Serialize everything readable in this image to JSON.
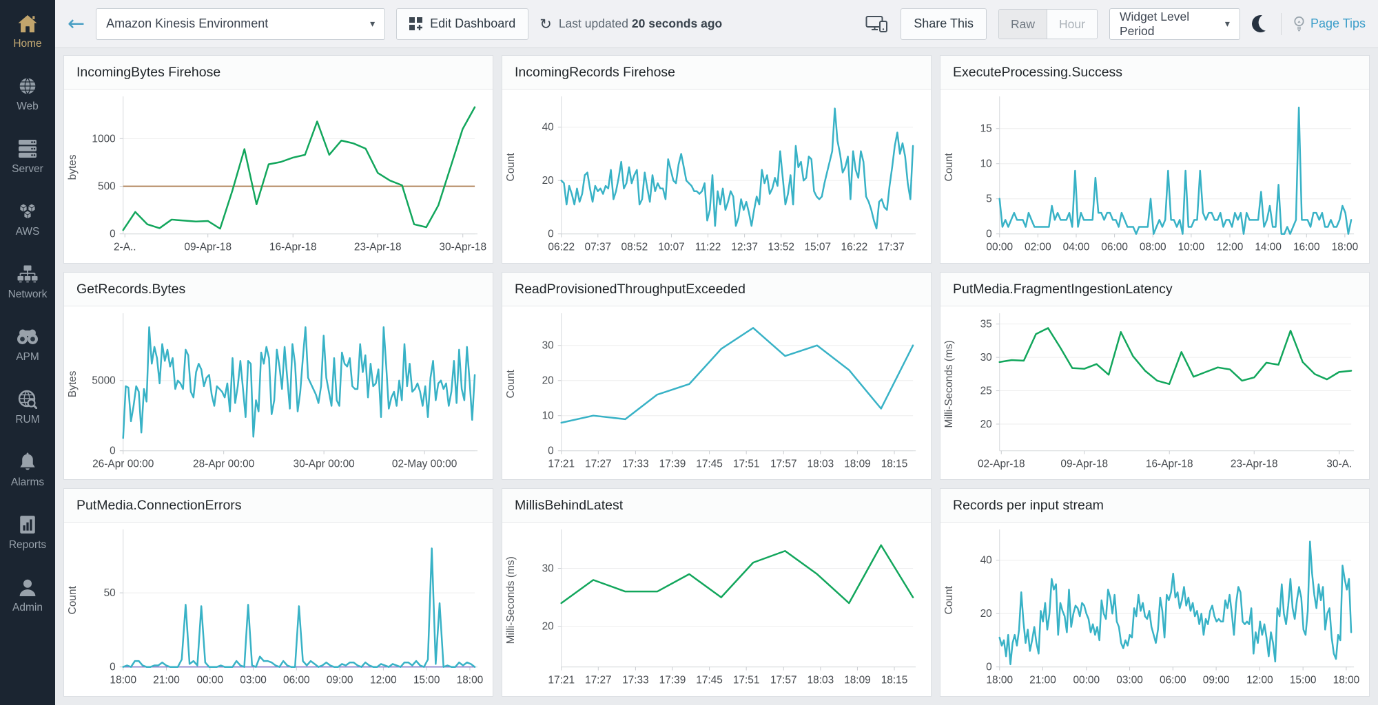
{
  "sidebar": {
    "items": [
      {
        "label": "Home",
        "icon": "home-icon",
        "active": true
      },
      {
        "label": "Web",
        "icon": "web-icon",
        "active": false
      },
      {
        "label": "Server",
        "icon": "server-icon",
        "active": false
      },
      {
        "label": "AWS",
        "icon": "aws-icon",
        "active": false
      },
      {
        "label": "Network",
        "icon": "network-icon",
        "active": false
      },
      {
        "label": "APM",
        "icon": "apm-icon",
        "active": false
      },
      {
        "label": "RUM",
        "icon": "rum-icon",
        "active": false
      },
      {
        "label": "Alarms",
        "icon": "alarms-icon",
        "active": false
      },
      {
        "label": "Reports",
        "icon": "reports-icon",
        "active": false
      },
      {
        "label": "Admin",
        "icon": "admin-icon",
        "active": false
      }
    ]
  },
  "topbar": {
    "icons": {
      "back": "←",
      "caret": "▾",
      "refresh": "↻"
    },
    "dashboard_select_value": "Amazon Kinesis Environment",
    "edit_dashboard_label": "Edit Dashboard",
    "last_updated_prefix": "Last updated",
    "last_updated_value": "20 seconds ago",
    "share_this_label": "Share This",
    "raw_label": "Raw",
    "hour_label": "Hour",
    "widget_level_period_label": "Widget Level Period",
    "page_tips_label": "Page Tips"
  },
  "colors": {
    "green": "#12a65c",
    "teal": "#38b2c6",
    "threshold_tan": "#aa7a4e",
    "baseline_purple": "#8a7fc9"
  },
  "chart_data": [
    {
      "type": "line",
      "title": "IncomingBytes Firehose",
      "ylabel": "bytes",
      "yticks": [
        0,
        500,
        1000
      ],
      "ylim": [
        0,
        1400
      ],
      "xlabels": [
        "2-A..",
        "09-Apr-18",
        "16-Apr-18",
        "23-Apr-18",
        "30-Apr-18"
      ],
      "xpos": [
        0.005,
        0.241,
        0.483,
        0.724,
        0.966
      ],
      "color": "#12a65c",
      "threshold": {
        "value": 500,
        "color": "#aa7a4e"
      },
      "values": [
        40,
        230,
        100,
        60,
        150,
        140,
        130,
        135,
        55,
        450,
        890,
        310,
        730,
        755,
        800,
        830,
        1180,
        830,
        980,
        950,
        895,
        640,
        560,
        510,
        100,
        70,
        300,
        700,
        1100,
        1330
      ]
    },
    {
      "type": "line",
      "title": "IncomingRecords Firehose",
      "ylabel": "Count",
      "yticks": [
        0,
        20,
        40
      ],
      "ylim": [
        0,
        50
      ],
      "xlabels": [
        "06:22",
        "07:37",
        "08:52",
        "10:07",
        "11:22",
        "12:37",
        "13:52",
        "15:07",
        "16:22",
        "17:37"
      ],
      "xpos": [
        0,
        0.104,
        0.208,
        0.313,
        0.417,
        0.521,
        0.625,
        0.729,
        0.833,
        0.938
      ],
      "color": "#38b2c6",
      "values": [
        20,
        19,
        11,
        18,
        15,
        11,
        17,
        12,
        15,
        22,
        23,
        17,
        12,
        18,
        16,
        17,
        15,
        18,
        17,
        24,
        13,
        16,
        21,
        27,
        17,
        19,
        25,
        19,
        22,
        24,
        11,
        13,
        23,
        17,
        12,
        22,
        16,
        19,
        17,
        17,
        13,
        28,
        24,
        20,
        19,
        26,
        30,
        25,
        20,
        19,
        18,
        16,
        16,
        15,
        16,
        19,
        5,
        9,
        22,
        3,
        16,
        11,
        17,
        9,
        12,
        16,
        14,
        3,
        6,
        13,
        9,
        12,
        8,
        3,
        9,
        14,
        11,
        24,
        19,
        22,
        15,
        17,
        21,
        18,
        31,
        21,
        11,
        15,
        22,
        11,
        33,
        25,
        27,
        20,
        21,
        29,
        28,
        16,
        14,
        13,
        14,
        19,
        23,
        27,
        31,
        47,
        35,
        30,
        23,
        25,
        29,
        13,
        31,
        24,
        21,
        31,
        27,
        14,
        12,
        9,
        5,
        2,
        12,
        13,
        10,
        9,
        18,
        25,
        33,
        38,
        30,
        34,
        29,
        19,
        13,
        33
      ]
    },
    {
      "type": "line",
      "title": "ExecuteProcessing.Success",
      "ylabel": "Count",
      "yticks": [
        0,
        5,
        10,
        15
      ],
      "ylim": [
        0,
        19
      ],
      "xlabels": [
        "00:00",
        "02:00",
        "04:00",
        "06:00",
        "08:00",
        "10:00",
        "12:00",
        "14:00",
        "16:00",
        "18:00"
      ],
      "xpos": [
        0,
        0.109,
        0.218,
        0.327,
        0.436,
        0.545,
        0.655,
        0.764,
        0.873,
        0.982
      ],
      "color": "#38b2c6",
      "values": [
        5,
        1,
        2,
        1,
        2,
        3,
        2,
        2,
        2,
        1,
        3,
        2,
        1,
        1,
        1,
        1,
        1,
        1,
        4,
        2,
        3,
        2,
        2,
        2,
        3,
        1,
        9,
        1,
        3,
        2,
        2,
        2,
        2,
        8,
        3,
        3,
        2,
        3,
        3,
        2,
        2,
        1,
        3,
        2,
        1,
        1,
        1,
        0,
        1,
        1,
        1,
        1,
        5,
        0,
        1,
        2,
        1,
        2,
        9,
        2,
        2,
        1,
        2,
        0,
        9,
        1,
        1,
        2,
        2,
        9,
        3,
        2,
        3,
        3,
        2,
        2,
        3,
        1,
        2,
        2,
        1,
        3,
        2,
        3,
        0,
        3,
        2,
        2,
        2,
        2,
        6,
        1,
        2,
        4,
        1,
        1,
        7,
        0,
        0,
        1,
        0,
        1,
        2,
        18,
        2,
        2,
        2,
        1,
        3,
        3,
        2,
        3,
        1,
        1,
        2,
        1,
        1,
        2,
        4,
        3,
        0,
        2
      ]
    },
    {
      "type": "line",
      "title": "GetRecords.Bytes",
      "ylabel": "Bytes",
      "yticks": [
        0,
        5000
      ],
      "ylim": [
        0,
        9500
      ],
      "xlabels": [
        "26-Apr 00:00",
        "28-Apr 00:00",
        "30-Apr 00:00",
        "02-May 00:00"
      ],
      "xpos": [
        0,
        0.286,
        0.571,
        0.857
      ],
      "color": "#38b2c6",
      "values": [
        900,
        4600,
        4500,
        2100,
        3200,
        4600,
        4200,
        1300,
        4400,
        3500,
        8800,
        6200,
        7400,
        6600,
        4800,
        7600,
        6400,
        7200,
        6000,
        6600,
        4400,
        5000,
        4800,
        4400,
        7200,
        6800,
        4200,
        3800,
        5600,
        6200,
        5800,
        4600,
        5200,
        5400,
        4000,
        3200,
        4600,
        4400,
        4200,
        3800,
        4800,
        2800,
        6600,
        3400,
        4600,
        6400,
        4400,
        2400,
        6400,
        6200,
        1000,
        3600,
        2800,
        7000,
        6200,
        7400,
        6600,
        2600,
        3600,
        7200,
        6000,
        4400,
        7400,
        5200,
        3000,
        7600,
        6200,
        2800,
        4200,
        6600,
        8800,
        5200,
        4800,
        4400,
        4000,
        3400,
        4600,
        8200,
        5200,
        4200,
        3200,
        6600,
        3600,
        3200,
        7000,
        6200,
        6000,
        6600,
        4600,
        4400,
        4400,
        7600,
        5600,
        6800,
        3800,
        6200,
        4600,
        4800,
        5800,
        2400,
        8800,
        6000,
        3000,
        3800,
        4200,
        3200,
        5000,
        3600,
        7600,
        4600,
        6200,
        4200,
        4400,
        4800,
        4200,
        3200,
        4600,
        2400,
        5200,
        6400,
        3600,
        4800,
        5000,
        4400,
        4800,
        3200,
        4200,
        6400,
        3400,
        7200,
        4400,
        3600,
        7400,
        5000,
        2200,
        5400
      ]
    },
    {
      "type": "line",
      "title": "ReadProvisionedThroughputExceeded",
      "ylabel": "Count",
      "yticks": [
        0,
        10,
        20,
        30
      ],
      "ylim": [
        0,
        38
      ],
      "xlabels": [
        "17:21",
        "17:27",
        "17:33",
        "17:39",
        "17:45",
        "17:51",
        "17:57",
        "18:03",
        "18:09",
        "18:15"
      ],
      "xpos": [
        0,
        0.105,
        0.211,
        0.316,
        0.421,
        0.526,
        0.632,
        0.737,
        0.842,
        0.947
      ],
      "color": "#38b2c6",
      "values": [
        8,
        10,
        9,
        16,
        19,
        29,
        35,
        27,
        30,
        23,
        12,
        30
      ]
    },
    {
      "type": "line",
      "title": "PutMedia.FragmentIngestionLatency",
      "ylabel": "Milli-Seconds (ms)",
      "yticks": [
        20,
        25,
        30,
        35
      ],
      "ylim": [
        16,
        36
      ],
      "xlabels": [
        "02-Apr-18",
        "09-Apr-18",
        "16-Apr-18",
        "23-Apr-18",
        "30-A."
      ],
      "xpos": [
        0.005,
        0.241,
        0.483,
        0.724,
        0.966
      ],
      "color": "#12a65c",
      "values": [
        29.3,
        29.6,
        29.5,
        33.5,
        34.4,
        31.5,
        28.4,
        28.3,
        29,
        27.4,
        33.8,
        30.2,
        28,
        26.5,
        26,
        30.8,
        27.1,
        27.8,
        28.5,
        28.2,
        26.5,
        27,
        29.2,
        28.9,
        34,
        29.3,
        27.5,
        26.7,
        27.8,
        28
      ]
    },
    {
      "type": "line",
      "title": "PutMedia.ConnectionErrors",
      "ylabel": "Count",
      "yticks": [
        0,
        50
      ],
      "ylim": [
        0,
        90
      ],
      "xlabels": [
        "18:00",
        "21:00",
        "00:00",
        "03:00",
        "06:00",
        "09:00",
        "12:00",
        "15:00",
        "18:00"
      ],
      "xpos": [
        0,
        0.123,
        0.247,
        0.37,
        0.493,
        0.616,
        0.74,
        0.863,
        0.986
      ],
      "color": "#38b2c6",
      "flatline": {
        "value": 0,
        "color": "#8a7fc9"
      },
      "values": [
        0,
        1,
        0,
        4,
        4,
        1,
        0,
        0,
        1,
        1,
        3,
        1,
        0,
        0,
        0,
        5,
        42,
        2,
        4,
        1,
        41,
        3,
        0,
        0,
        0,
        1,
        0,
        0,
        0,
        4,
        1,
        0,
        42,
        1,
        0,
        7,
        4,
        4,
        3,
        1,
        0,
        4,
        1,
        0,
        0,
        41,
        4,
        1,
        4,
        2,
        0,
        1,
        3,
        1,
        0,
        0,
        2,
        1,
        3,
        3,
        1,
        0,
        3,
        1,
        0,
        0,
        2,
        1,
        0,
        2,
        1,
        0,
        3,
        3,
        1,
        4,
        1,
        0,
        5,
        80,
        2,
        43,
        0,
        1,
        0,
        0,
        3,
        1,
        3,
        2,
        0
      ]
    },
    {
      "type": "line",
      "title": "MillisBehindLatest",
      "ylabel": "Milli-Seconds (ms)",
      "yticks": [
        20,
        30
      ],
      "ylim": [
        13,
        36
      ],
      "xlabels": [
        "17:21",
        "17:27",
        "17:33",
        "17:39",
        "17:45",
        "17:51",
        "17:57",
        "18:03",
        "18:09",
        "18:15"
      ],
      "xpos": [
        0,
        0.105,
        0.211,
        0.316,
        0.421,
        0.526,
        0.632,
        0.737,
        0.842,
        0.947
      ],
      "color": "#12a65c",
      "values": [
        24,
        28,
        26,
        26,
        29,
        25,
        31,
        33,
        29,
        24,
        34,
        25
      ]
    },
    {
      "type": "line",
      "title": "Records per input stream",
      "ylabel": "Count",
      "yticks": [
        0,
        20,
        40
      ],
      "ylim": [
        0,
        50
      ],
      "xlabels": [
        "18:00",
        "21:00",
        "00:00",
        "03:00",
        "06:00",
        "09:00",
        "12:00",
        "15:00",
        "18:00"
      ],
      "xpos": [
        0,
        0.123,
        0.247,
        0.37,
        0.493,
        0.616,
        0.74,
        0.863,
        0.986
      ],
      "color": "#38b2c6",
      "values": [
        11,
        8,
        10,
        4,
        12,
        1,
        9,
        12,
        8,
        14,
        28,
        17,
        9,
        14,
        6,
        10,
        15,
        9,
        5,
        21,
        17,
        24,
        14,
        20,
        33,
        29,
        31,
        12,
        24,
        21,
        19,
        13,
        29,
        15,
        20,
        23,
        22,
        19,
        24,
        23,
        20,
        18,
        13,
        16,
        12,
        15,
        10,
        25,
        20,
        18,
        29,
        26,
        20,
        27,
        17,
        15,
        9,
        7,
        10,
        8,
        12,
        11,
        22,
        19,
        27,
        21,
        24,
        19,
        18,
        21,
        15,
        12,
        9,
        14,
        26,
        21,
        11,
        27,
        25,
        28,
        35,
        26,
        28,
        22,
        25,
        30,
        23,
        26,
        21,
        24,
        19,
        21,
        16,
        20,
        12,
        18,
        16,
        21,
        23,
        19,
        17,
        18,
        17,
        17,
        25,
        22,
        27,
        20,
        12,
        24,
        30,
        28,
        17,
        16,
        17,
        16,
        22,
        5,
        13,
        9,
        17,
        12,
        16,
        11,
        4,
        13,
        9,
        2,
        22,
        19,
        31,
        20,
        16,
        23,
        33,
        22,
        18,
        25,
        30,
        26,
        14,
        12,
        21,
        47,
        35,
        27,
        22,
        31,
        25,
        30,
        14,
        20,
        22,
        11,
        5,
        3,
        12,
        10,
        38,
        33,
        29,
        33,
        13
      ]
    }
  ]
}
